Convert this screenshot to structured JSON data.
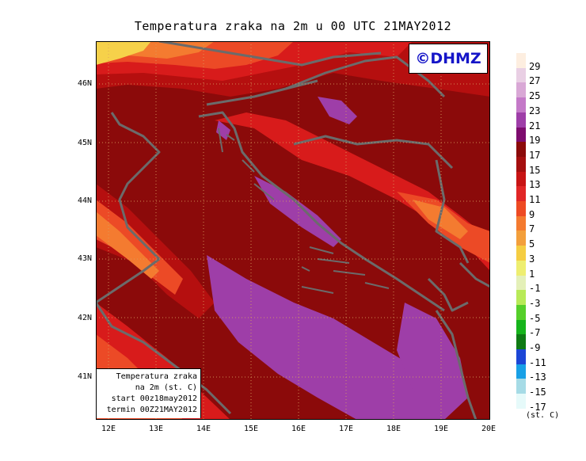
{
  "title": "Temperatura zraka na 2m u 00 UTC 21MAY2012",
  "logo_text": "©DHMZ",
  "info_box": {
    "line1": "Temperatura zraka",
    "line2": "na 2m (st. C)",
    "line3": "start 00z18may2012",
    "line4": "termin 00Z21MAY2012"
  },
  "axes": {
    "x_ticks": [
      "12E",
      "13E",
      "14E",
      "15E",
      "16E",
      "17E",
      "18E",
      "19E",
      "20E"
    ],
    "y_ticks": [
      "46N",
      "45N",
      "44N",
      "43N",
      "42N",
      "41N"
    ]
  },
  "legend": {
    "units": "(st. C)",
    "labels": [
      "29",
      "27",
      "25",
      "23",
      "21",
      "19",
      "17",
      "15",
      "13",
      "11",
      "9",
      "7",
      "5",
      "3",
      "1",
      "-1",
      "-3",
      "-5",
      "-7",
      "-9",
      "-11",
      "-13",
      "-15",
      "-17"
    ],
    "colors": [
      "#fdeee0",
      "#e9cfe4",
      "#d9a8d6",
      "#c479c8",
      "#9e3ea8",
      "#7d0c6e",
      "#8b0a0a",
      "#a50f0f",
      "#c81414",
      "#e12626",
      "#ee4a23",
      "#f47a2f",
      "#f39f3b",
      "#f5cd42",
      "#eeee70",
      "#e4f0b8",
      "#b8ea58",
      "#55cf2a",
      "#16b41c",
      "#0f7a14",
      "#1c46d6",
      "#18a0e6",
      "#a6dbe6",
      "#e6fafa"
    ]
  },
  "palette": {
    "dark_red": "#8b0a0a",
    "red": "#b50f0f",
    "bright_red": "#d81b1b",
    "orange_red": "#ec4a26",
    "orange": "#f47b30",
    "light_orange": "#f5a43e",
    "yellow": "#f6d14a",
    "purple": "#9e3ea8",
    "border_gray": "#6b6b6b"
  }
}
